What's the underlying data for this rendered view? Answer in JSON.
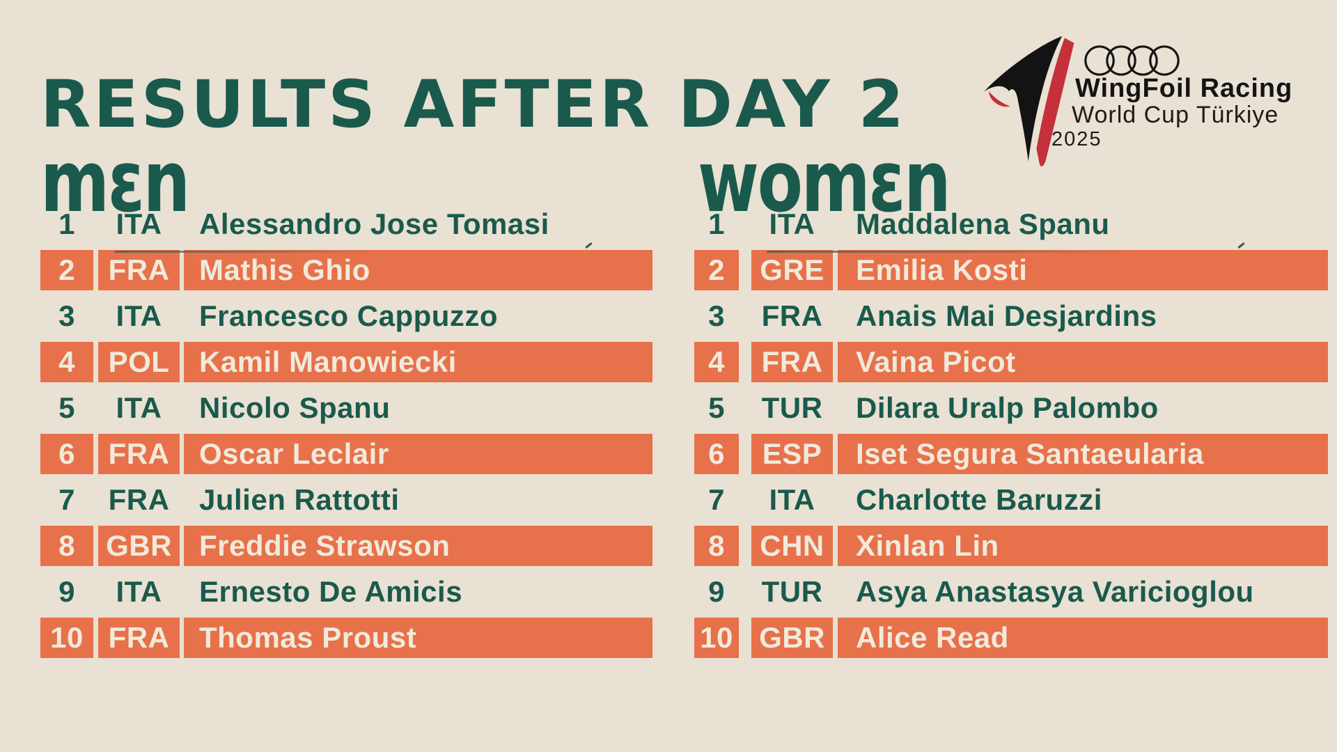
{
  "title": "RESULTS AFTER DAY 2",
  "logo": {
    "brand": "WingFoil Racing",
    "event": "World Cup Türkiye",
    "year": "2025",
    "rings_icon": "audi-rings",
    "wing_icon": "wing-sail"
  },
  "colors": {
    "background": "#E9E1D3",
    "teal": "#1A5A4D",
    "orange": "#E7714A",
    "cream_text": "#F1EADB",
    "logo_black": "#141414",
    "logo_red": "#C5303B"
  },
  "tables": [
    {
      "id": "men",
      "label": "MEN",
      "display": "mεn",
      "columns": [
        "rank",
        "country",
        "name"
      ],
      "rows": [
        {
          "rank": 1,
          "country": "ITA",
          "name": "Alessandro Jose Tomasi"
        },
        {
          "rank": 2,
          "country": "FRA",
          "name": "Mathis Ghio"
        },
        {
          "rank": 3,
          "country": "ITA",
          "name": "Francesco Cappuzzo"
        },
        {
          "rank": 4,
          "country": "POL",
          "name": "Kamil Manowiecki"
        },
        {
          "rank": 5,
          "country": "ITA",
          "name": "Nicolo Spanu"
        },
        {
          "rank": 6,
          "country": "FRA",
          "name": "Oscar Leclair"
        },
        {
          "rank": 7,
          "country": "FRA",
          "name": "Julien Rattotti"
        },
        {
          "rank": 8,
          "country": "GBR",
          "name": "Freddie Strawson"
        },
        {
          "rank": 9,
          "country": "ITA",
          "name": "Ernesto De Amicis"
        },
        {
          "rank": 10,
          "country": "FRA",
          "name": "Thomas Proust"
        }
      ]
    },
    {
      "id": "women",
      "label": "WOMEN",
      "display": "womεn",
      "columns": [
        "rank",
        "country",
        "name"
      ],
      "rows": [
        {
          "rank": 1,
          "country": "ITA",
          "name": "Maddalena Spanu"
        },
        {
          "rank": 2,
          "country": "GRE",
          "name": "Emilia Kosti"
        },
        {
          "rank": 3,
          "country": "FRA",
          "name": "Anais Mai Desjardins"
        },
        {
          "rank": 4,
          "country": "FRA",
          "name": "Vaina Picot"
        },
        {
          "rank": 5,
          "country": "TUR",
          "name": "Dilara Uralp Palombo"
        },
        {
          "rank": 6,
          "country": "ESP",
          "name": "Iset Segura Santaeularia"
        },
        {
          "rank": 7,
          "country": "ITA",
          "name": "Charlotte Baruzzi"
        },
        {
          "rank": 8,
          "country": "CHN",
          "name": "Xinlan Lin"
        },
        {
          "rank": 9,
          "country": "TUR",
          "name": "Asya Anastasya Varicioglou"
        },
        {
          "rank": 10,
          "country": "GBR",
          "name": "Alice Read"
        }
      ]
    }
  ]
}
